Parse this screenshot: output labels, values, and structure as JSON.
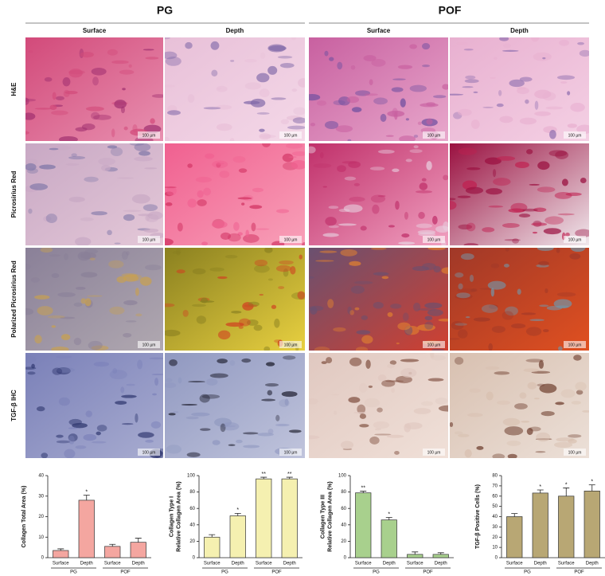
{
  "figure": {
    "groups": [
      "PG",
      "POF"
    ],
    "columns": [
      "Surface",
      "Depth",
      "Surface",
      "Depth"
    ],
    "rows": [
      "H&E",
      "Picrosirius Red",
      "Polarized Picrosirius Red",
      "TGF-β IHC"
    ],
    "scale_bar": "100 µm"
  },
  "chart_data": [
    {
      "type": "bar",
      "ylabel": [
        "Collagen Total Area (%)"
      ],
      "categories": [
        "Surface",
        "Depth",
        "Surface",
        "Depth"
      ],
      "groups": [
        "PG",
        "POF"
      ],
      "values": [
        3.5,
        28,
        5.5,
        7.5
      ],
      "errors": [
        0.8,
        2.5,
        1,
        2
      ],
      "significance": [
        null,
        "*",
        null,
        null
      ],
      "color": "#f4a6a0",
      "ylim": [
        0,
        40
      ],
      "yticks": [
        0,
        10,
        20,
        30,
        40
      ]
    },
    {
      "type": "bar",
      "ylabel": [
        "Collagen Type I",
        "Relative Collagen Area (%)"
      ],
      "categories": [
        "Surface",
        "Depth",
        "Surface",
        "Depth"
      ],
      "groups": [
        "PG",
        "POF"
      ],
      "values": [
        25,
        51,
        96,
        96
      ],
      "errors": [
        3,
        3,
        2,
        2
      ],
      "significance": [
        null,
        "*",
        "**",
        "**"
      ],
      "color": "#f5f0b0",
      "ylim": [
        0,
        100
      ],
      "yticks": [
        0,
        20,
        40,
        60,
        80,
        100
      ]
    },
    {
      "type": "bar",
      "ylabel": [
        "Collagen Type III",
        "Relative Collagen Area (%)"
      ],
      "categories": [
        "Surface",
        "Depth",
        "Surface",
        "Depth"
      ],
      "groups": [
        "PG",
        "POF"
      ],
      "values": [
        79,
        46,
        4,
        4
      ],
      "errors": [
        2,
        3,
        3,
        2
      ],
      "significance": [
        "**",
        "*",
        null,
        null
      ],
      "color": "#a8d08d",
      "ylim": [
        0,
        100
      ],
      "yticks": [
        0,
        20,
        40,
        60,
        80,
        100
      ]
    },
    {
      "type": "bar",
      "ylabel": [
        "TGF-β Positive Cells (%)"
      ],
      "categories": [
        "Surface",
        "Depth",
        "Surface",
        "Depth"
      ],
      "groups": [
        "PG",
        "POF"
      ],
      "values": [
        40,
        63,
        60,
        65
      ],
      "errors": [
        3,
        3,
        8,
        6
      ],
      "significance": [
        null,
        "*",
        "*",
        "*"
      ],
      "color": "#b8a774",
      "ylim": [
        0,
        80
      ],
      "yticks": [
        0,
        10,
        20,
        30,
        40,
        50,
        60,
        70,
        80
      ]
    }
  ]
}
